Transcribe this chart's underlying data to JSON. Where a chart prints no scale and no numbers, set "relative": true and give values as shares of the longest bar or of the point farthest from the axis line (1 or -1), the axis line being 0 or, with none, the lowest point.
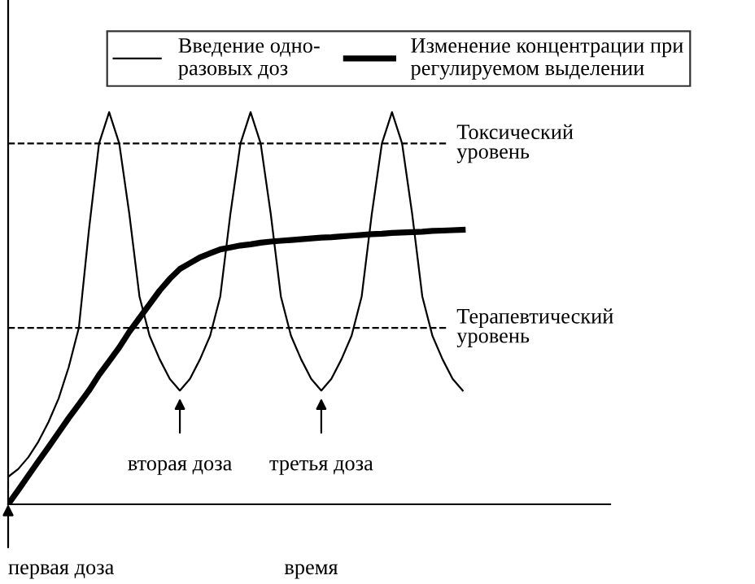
{
  "chart_data": {
    "type": "line",
    "relative": true,
    "legend": "top",
    "xlabel": "время",
    "categories": [
      null,
      null,
      null,
      null,
      null,
      null,
      null,
      null,
      null,
      null,
      null,
      null,
      null,
      null,
      null,
      null,
      null,
      null,
      null,
      null,
      null,
      null,
      null,
      null,
      null,
      null,
      null,
      null,
      null,
      null,
      null,
      null,
      null,
      null,
      null,
      null,
      null,
      null,
      null,
      null,
      null,
      null,
      null,
      null,
      null,
      null,
      null,
      null,
      null,
      null,
      null,
      null,
      null,
      null,
      null,
      null,
      null,
      null,
      null,
      null
    ],
    "series": [
      {
        "name": "Введение одно-\nразовых доз",
        "color": "#000000",
        "line_style": "solid",
        "values": [
          0.07,
          0.09,
          0.12,
          0.16,
          0.21,
          0.27,
          0.35,
          0.45,
          0.7,
          0.92,
          1,
          0.92,
          0.74,
          0.53,
          0.43,
          0.37,
          0.32,
          0.29,
          0.32,
          0.37,
          0.43,
          0.53,
          0.74,
          0.92,
          1,
          0.92,
          0.74,
          0.53,
          0.43,
          0.37,
          0.32,
          0.29,
          0.32,
          0.37,
          0.43,
          0.53,
          0.74,
          0.92,
          1,
          0.92,
          0.74,
          0.53,
          0.43,
          0.37,
          0.32,
          0.29,
          null,
          null,
          null,
          null,
          null,
          null,
          null,
          null,
          null,
          null,
          null,
          null,
          null,
          null
        ]
      },
      {
        "name": "Изменение концентрации при\nрегулируемом выделении",
        "color": "#000000",
        "line_style": "solid",
        "values": [
          0,
          0.036,
          0.073,
          0.11,
          0.146,
          0.183,
          0.22,
          0.255,
          0.29,
          0.33,
          0.365,
          0.4,
          0.44,
          0.475,
          0.51,
          0.545,
          0.575,
          0.6,
          0.615,
          0.63,
          0.64,
          0.65,
          0.655,
          0.66,
          0.663,
          0.667,
          0.67,
          0.672,
          0.674,
          0.676,
          0.678,
          0.68,
          0.681,
          0.683,
          0.685,
          0.687,
          0.689,
          0.69,
          0.692,
          0.693,
          0.694,
          0.695,
          0.697,
          0.698,
          0.699,
          0.7,
          null,
          null,
          null,
          null,
          null,
          null,
          null,
          null,
          null,
          null,
          null,
          null,
          null,
          null
        ]
      }
    ],
    "ref_lines": [
      {
        "axis": "y",
        "value": 0.92,
        "label": "Токсический\nуровень",
        "color": "#000000",
        "line_style": "dashed"
      },
      {
        "axis": "y",
        "value": 0.45,
        "label": "Терапевтический\nуровень",
        "color": "#000000",
        "line_style": "dashed"
      }
    ],
    "annotations": [
      "первая доза",
      "вторая доза",
      "третья доза"
    ]
  }
}
